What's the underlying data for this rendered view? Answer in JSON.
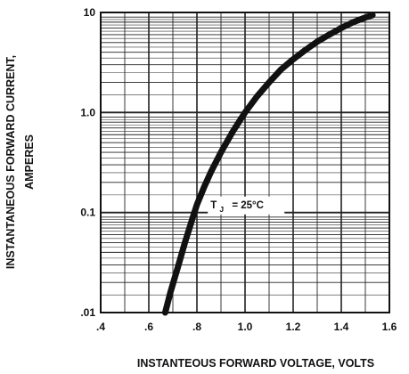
{
  "chart_data": {
    "type": "line",
    "xlabel": "INSTANTEOUS FORWARD VOLTAGE, VOLTS",
    "ylabel_line1": "INSTANTANEOUS FORWARD CURRENT,",
    "ylabel_line2": "AMPERES",
    "x_scale": "linear",
    "y_scale": "log",
    "xlim": [
      0.4,
      1.6
    ],
    "ylim": [
      0.01,
      10
    ],
    "x_ticks": [
      0.4,
      0.6,
      0.8,
      1.0,
      1.2,
      1.4,
      1.6
    ],
    "x_tick_labels": [
      ".4",
      ".6",
      ".8",
      "1.0",
      "1.2",
      "1.4",
      "1.6"
    ],
    "y_ticks": [
      0.01,
      0.1,
      1.0,
      10
    ],
    "y_tick_labels": [
      ".01",
      "0.1",
      "1.0",
      "10"
    ],
    "grid": true,
    "annotation": {
      "main": "T",
      "subscript": "J",
      "rest": "= 25°C",
      "x": 0.96,
      "y": 0.12
    },
    "series": [
      {
        "color": "#111111",
        "x": [
          0.668,
          0.69,
          0.72,
          0.75,
          0.78,
          0.8,
          0.83,
          0.86,
          0.9,
          0.95,
          1.0,
          1.05,
          1.1,
          1.15,
          1.2,
          1.25,
          1.3,
          1.35,
          1.4,
          1.45,
          1.5,
          1.53
        ],
        "y": [
          0.01,
          0.016,
          0.028,
          0.05,
          0.085,
          0.12,
          0.18,
          0.26,
          0.4,
          0.65,
          1.0,
          1.45,
          2.0,
          2.7,
          3.4,
          4.2,
          5.1,
          6.0,
          7.0,
          8.0,
          8.9,
          9.4
        ]
      }
    ]
  }
}
